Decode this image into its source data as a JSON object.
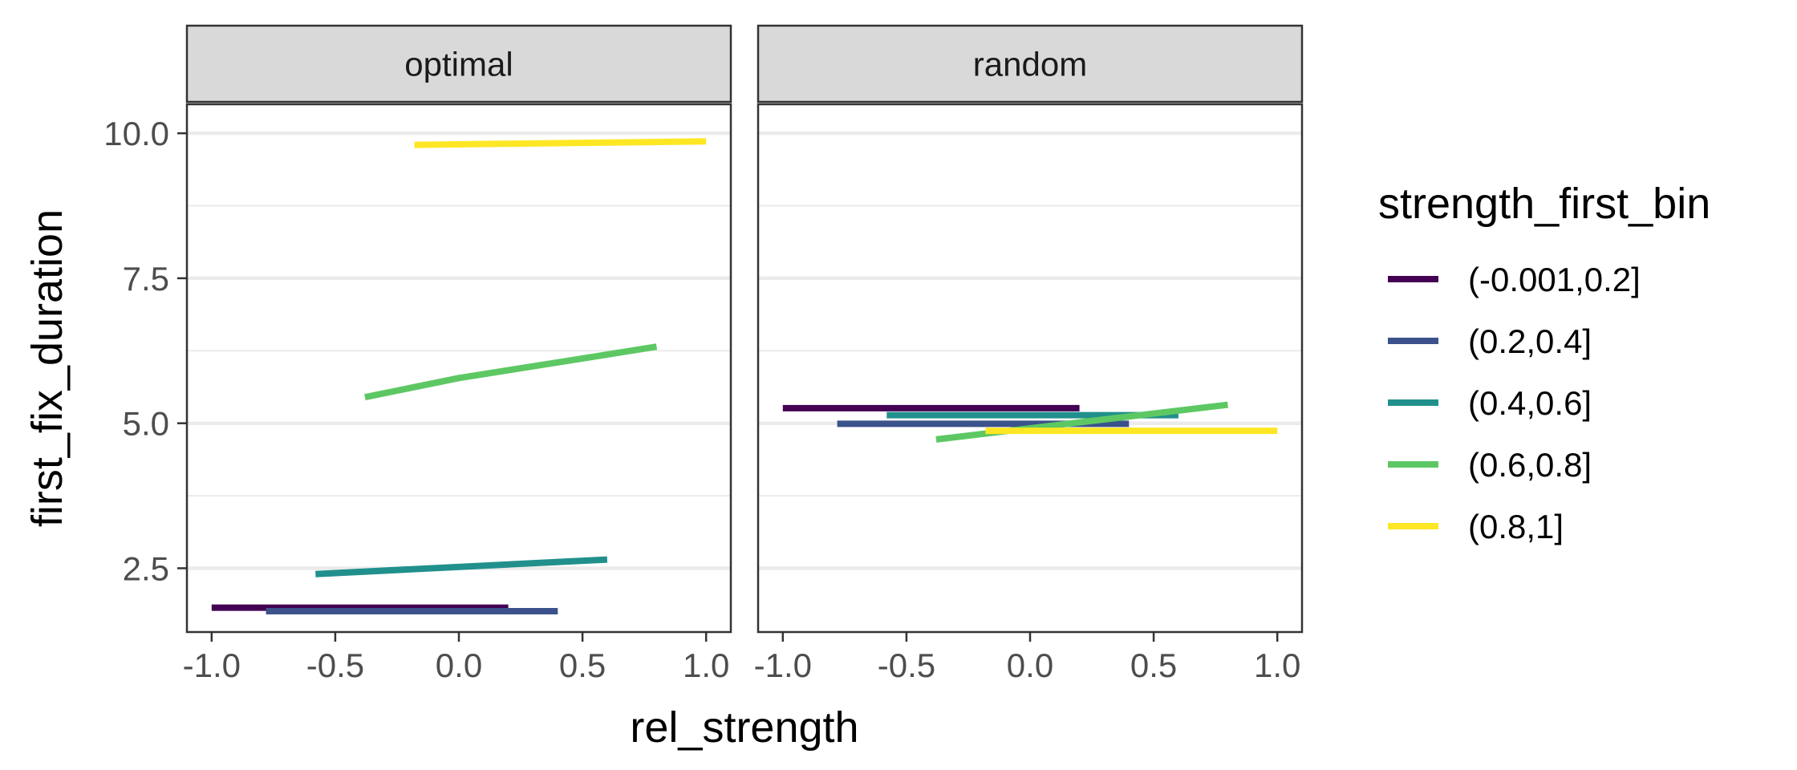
{
  "chart_data": {
    "type": "line",
    "xlabel": "rel_strength",
    "ylabel": "first_fix_duration",
    "xlim": [
      -1.1,
      1.1
    ],
    "ylim": [
      1.4,
      10.5
    ],
    "xticks": [
      -1.0,
      -0.5,
      0.0,
      0.5,
      1.0
    ],
    "xtick_labels": [
      "-1.0",
      "-0.5",
      "0.0",
      "0.5",
      "1.0"
    ],
    "yticks": [
      2.5,
      5.0,
      7.5,
      10.0
    ],
    "ytick_labels": [
      "2.5",
      "5.0",
      "7.5",
      "10.0"
    ],
    "grid": true,
    "legend": {
      "title": "strength_first_bin",
      "position": "right",
      "entries": [
        {
          "label": "(-0.001,0.2]",
          "color": "#440154"
        },
        {
          "label": "(0.2,0.4]",
          "color": "#3B528B"
        },
        {
          "label": "(0.4,0.6]",
          "color": "#21908C"
        },
        {
          "label": "(0.6,0.8]",
          "color": "#5DC863"
        },
        {
          "label": "(0.8,1]",
          "color": "#FDE725"
        }
      ]
    },
    "facets": [
      {
        "label": "optimal",
        "series": [
          {
            "name": "(-0.001,0.2]",
            "color": "#440154",
            "x": [
              -1.0,
              0.2
            ],
            "y": [
              1.82,
              1.82
            ]
          },
          {
            "name": "(0.2,0.4]",
            "color": "#3B528B",
            "x": [
              -0.78,
              0.4
            ],
            "y": [
              1.76,
              1.76
            ]
          },
          {
            "name": "(0.4,0.6]",
            "color": "#21908C",
            "x": [
              -0.58,
              0.6
            ],
            "y": [
              2.4,
              2.65
            ]
          },
          {
            "name": "(0.6,0.8]",
            "color": "#5DC863",
            "x": [
              -0.38,
              0.0,
              0.4,
              0.8
            ],
            "y": [
              5.45,
              5.78,
              6.05,
              6.32
            ]
          },
          {
            "name": "(0.8,1]",
            "color": "#FDE725",
            "x": [
              -0.18,
              1.0
            ],
            "y": [
              9.8,
              9.86
            ]
          }
        ]
      },
      {
        "label": "random",
        "series": [
          {
            "name": "(-0.001,0.2]",
            "color": "#440154",
            "x": [
              -1.0,
              0.2
            ],
            "y": [
              5.26,
              5.26
            ]
          },
          {
            "name": "(0.2,0.4]",
            "color": "#3B528B",
            "x": [
              -0.78,
              0.4
            ],
            "y": [
              4.99,
              4.99
            ]
          },
          {
            "name": "(0.4,0.6]",
            "color": "#21908C",
            "x": [
              -0.58,
              0.6
            ],
            "y": [
              5.14,
              5.14
            ]
          },
          {
            "name": "(0.6,0.8]",
            "color": "#5DC863",
            "x": [
              -0.38,
              0.8
            ],
            "y": [
              4.72,
              5.32
            ]
          },
          {
            "name": "(0.8,1]",
            "color": "#FDE725",
            "x": [
              -0.18,
              1.0
            ],
            "y": [
              4.87,
              4.87
            ]
          }
        ]
      }
    ]
  }
}
